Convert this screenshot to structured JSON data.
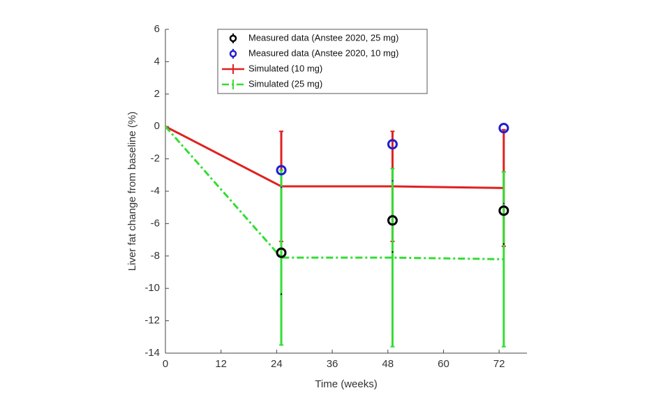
{
  "chart_data": {
    "type": "errorbar",
    "x_label": "Time (weeks)",
    "y_label": "Liver fat change from baseline (%)",
    "xlim": [
      0,
      78
    ],
    "xticks": [
      0,
      12,
      24,
      36,
      48,
      60,
      72
    ],
    "ylim": [
      -14,
      6
    ],
    "yticks": [
      -14,
      -12,
      -10,
      -8,
      -6,
      -4,
      -2,
      0,
      2,
      4,
      6
    ],
    "legend": "top",
    "series": [
      {
        "name": "Measured data (Anstee 2020, 25 mg)",
        "color": "#000000",
        "style": "marker",
        "x": [
          25,
          49,
          73
        ],
        "values": [
          -7.8,
          -5.8,
          -5.2
        ],
        "errors": [
          2.6,
          2.0,
          2.1
        ]
      },
      {
        "name": "Measured data (Anstee 2020, 10 mg)",
        "color": "#1f1fd0",
        "style": "marker",
        "x": [
          25,
          49,
          73
        ],
        "values": [
          -2.7,
          -1.1,
          -0.1
        ],
        "errors": [
          1.1,
          2.3,
          4.7
        ]
      },
      {
        "name": "Simulated (10 mg)",
        "color": "#e02020",
        "style": "solid",
        "x": [
          0,
          25,
          49,
          73
        ],
        "values": [
          0,
          -3.7,
          -3.7,
          -3.8
        ],
        "errors": [
          0,
          3.4,
          3.4,
          3.6
        ]
      },
      {
        "name": "Simulated (25 mg)",
        "color": "#33dd33",
        "style": "dashdot",
        "x": [
          0,
          25,
          49,
          73
        ],
        "values": [
          0,
          -8.1,
          -8.1,
          -8.2
        ],
        "errors": [
          0,
          5.4,
          5.5,
          5.4
        ]
      }
    ]
  }
}
